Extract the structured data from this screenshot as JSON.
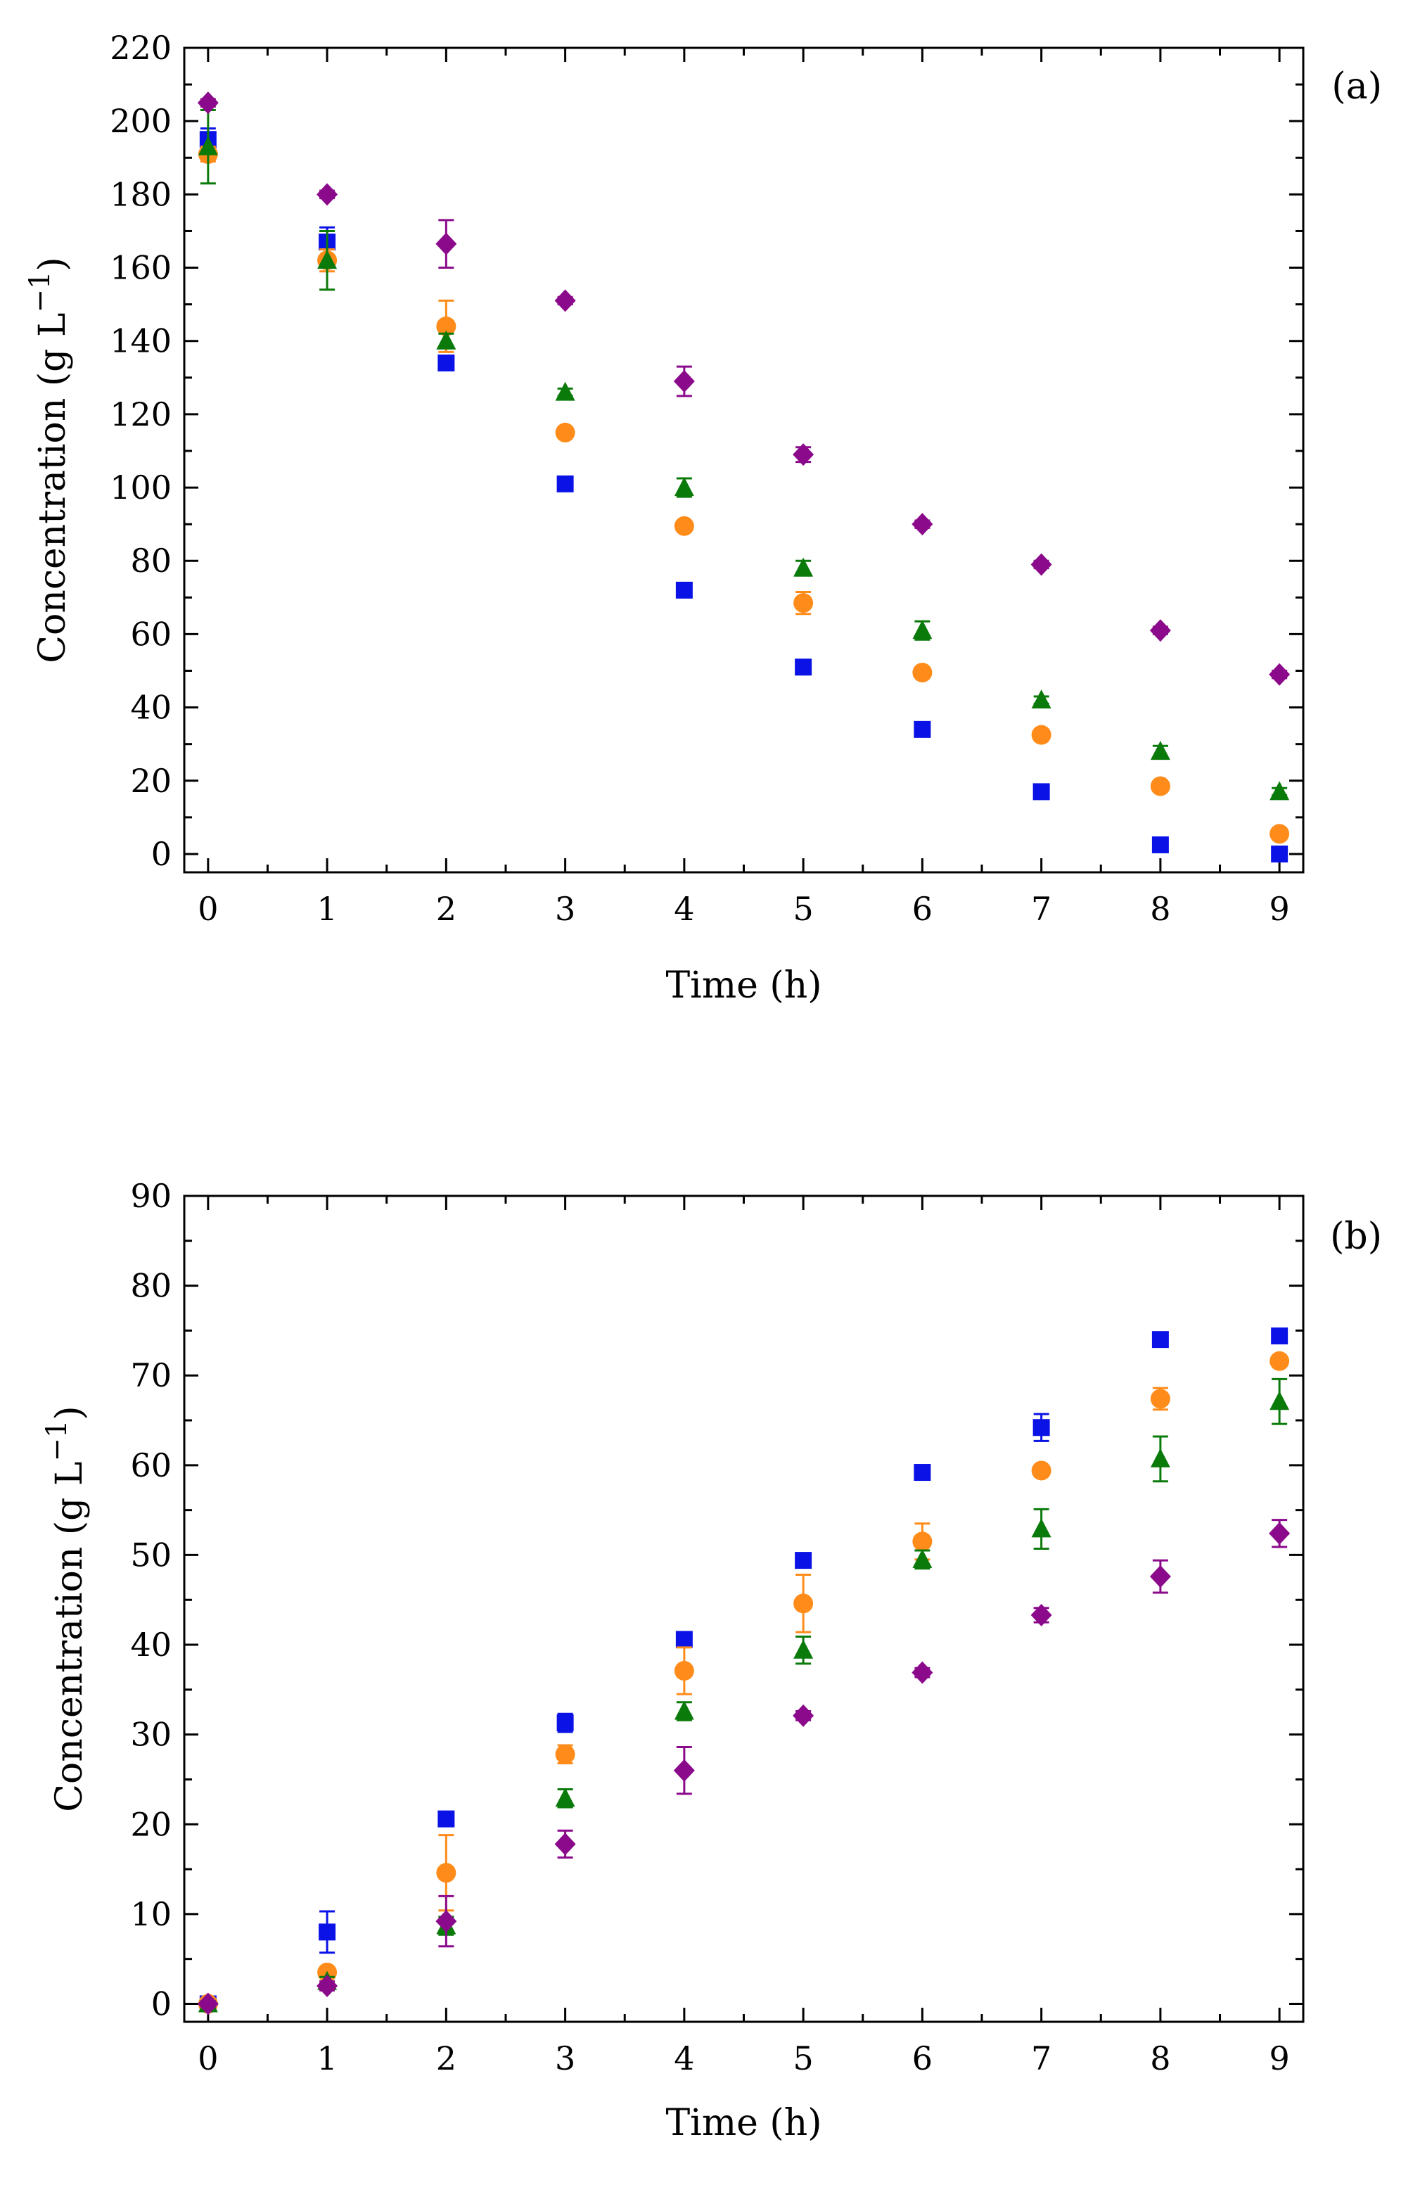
{
  "chart_data": [
    {
      "type": "scatter",
      "panel_label": "(a)",
      "xlabel": "Time (h)",
      "ylabel": {
        "main": "Concentration (g L",
        "superscript": "−1",
        "close": ")"
      },
      "xlim": [
        -0.2,
        9.2
      ],
      "ylim": [
        -5,
        220
      ],
      "xticks": [
        0,
        1,
        2,
        3,
        4,
        5,
        6,
        7,
        8,
        9
      ],
      "xtick_labels": [
        "0",
        "1",
        "2",
        "3",
        "4",
        "5",
        "6",
        "7",
        "8",
        "9"
      ],
      "yticks": [
        0,
        20,
        40,
        60,
        80,
        100,
        120,
        140,
        160,
        180,
        200,
        220
      ],
      "ytick_labels": [
        "0",
        "20",
        "40",
        "60",
        "80",
        "100",
        "120",
        "140",
        "160",
        "180",
        "200",
        "220"
      ],
      "x": [
        0,
        1,
        2,
        3,
        4,
        5,
        6,
        7,
        8,
        9
      ],
      "series": [
        {
          "name": "square",
          "marker": "square",
          "color": "#0a12e6",
          "values": [
            195,
            167,
            134,
            101,
            72,
            51,
            34,
            17,
            2.5,
            0
          ],
          "errors": [
            3,
            4,
            1,
            1.5,
            1,
            1,
            1,
            1,
            1,
            1
          ]
        },
        {
          "name": "circle",
          "marker": "circle",
          "color": "#ff8c1a",
          "values": [
            191,
            162,
            144,
            115,
            89.5,
            68.5,
            49.5,
            32.5,
            18.5,
            5.5
          ],
          "errors": [
            2,
            3,
            7,
            1,
            1,
            3,
            1,
            1,
            1,
            1
          ]
        },
        {
          "name": "triangle",
          "marker": "triangle",
          "color": "#0a7a0a",
          "values": [
            193,
            162,
            140,
            126,
            100,
            78,
            61,
            42,
            28,
            17
          ],
          "errors": [
            10,
            8,
            2,
            1,
            2.5,
            2,
            2.5,
            1,
            1.5,
            1
          ]
        },
        {
          "name": "diamond",
          "marker": "diamond",
          "color": "#8b0a8b",
          "values": [
            205,
            180,
            166.5,
            151,
            129,
            109,
            90,
            79,
            61,
            49
          ],
          "errors": [
            1,
            1,
            6.5,
            1,
            4,
            2,
            1,
            1,
            1,
            1
          ]
        }
      ]
    },
    {
      "type": "scatter",
      "panel_label": "(b)",
      "xlabel": "Time (h)",
      "ylabel": {
        "main": "Concentration (g L",
        "superscript": "−1",
        "close": ")"
      },
      "xlim": [
        -0.2,
        9.2
      ],
      "ylim": [
        -2,
        90
      ],
      "xticks": [
        0,
        1,
        2,
        3,
        4,
        5,
        6,
        7,
        8,
        9
      ],
      "xtick_labels": [
        "0",
        "1",
        "2",
        "3",
        "4",
        "5",
        "6",
        "7",
        "8",
        "9"
      ],
      "yticks": [
        0,
        10,
        20,
        30,
        40,
        50,
        60,
        70,
        80,
        90
      ],
      "ytick_labels": [
        "0",
        "10",
        "20",
        "30",
        "40",
        "50",
        "60",
        "70",
        "80",
        "90"
      ],
      "x": [
        0,
        1,
        2,
        3,
        4,
        5,
        6,
        7,
        8,
        9
      ],
      "series": [
        {
          "name": "square",
          "marker": "square",
          "color": "#0a12e6",
          "values": [
            0,
            8,
            20.6,
            31.3,
            40.6,
            49.4,
            59.2,
            64.2,
            74,
            74.4
          ],
          "errors": [
            0.5,
            2.3,
            0.5,
            1,
            0.5,
            0.5,
            0.5,
            1.5,
            0.5,
            0.5
          ]
        },
        {
          "name": "circle",
          "marker": "circle",
          "color": "#ff8c1a",
          "values": [
            0,
            3.5,
            14.6,
            27.8,
            37.1,
            44.6,
            51.5,
            59.4,
            67.4,
            71.6
          ],
          "errors": [
            0.3,
            0.5,
            4.2,
            1,
            2.6,
            3.2,
            2,
            0.5,
            1.2,
            0.5
          ]
        },
        {
          "name": "triangle",
          "marker": "triangle",
          "color": "#0a7a0a",
          "values": [
            0,
            2.5,
            8.7,
            22.9,
            32.6,
            39.4,
            49.5,
            52.9,
            60.7,
            67.1
          ],
          "errors": [
            0.3,
            0.5,
            1,
            1,
            1,
            1.5,
            1,
            2.2,
            2.5,
            2.5
          ]
        },
        {
          "name": "diamond",
          "marker": "diamond",
          "color": "#8b0a8b",
          "values": [
            0,
            2,
            9.2,
            17.8,
            26,
            32.1,
            36.9,
            43.3,
            47.6,
            52.4
          ],
          "errors": [
            0.3,
            0.5,
            2.8,
            1.5,
            2.6,
            0.5,
            0.5,
            0.8,
            1.8,
            1.5
          ]
        }
      ]
    }
  ]
}
